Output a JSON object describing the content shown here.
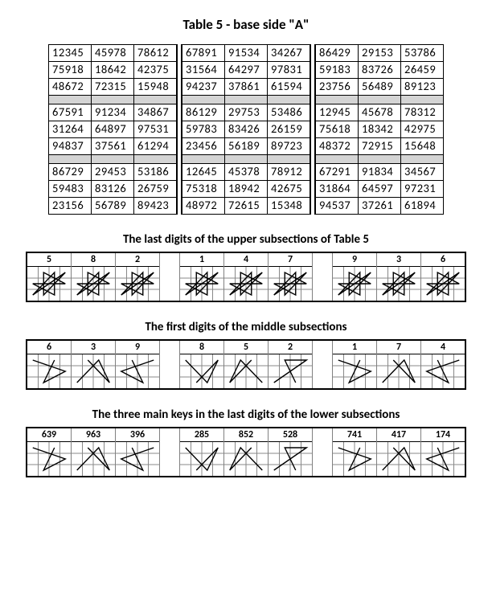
{
  "title": "Table 5 - base side \"A\"",
  "table5": {
    "blocks": [
      [
        [
          [
            "12345",
            "45978",
            "78612"
          ],
          [
            "67891",
            "91534",
            "34267"
          ],
          [
            "86429",
            "29153",
            "53786"
          ]
        ],
        [
          [
            "75918",
            "18642",
            "42375"
          ],
          [
            "31564",
            "64297",
            "97831"
          ],
          [
            "59183",
            "83726",
            "26459"
          ]
        ],
        [
          [
            "48672",
            "72315",
            "15948"
          ],
          [
            "94237",
            "37861",
            "61594"
          ],
          [
            "23756",
            "56489",
            "89123"
          ]
        ]
      ],
      [
        [
          [
            "67591",
            "91234",
            "34867"
          ],
          [
            "86129",
            "29753",
            "53486"
          ],
          [
            "12945",
            "45678",
            "78312"
          ]
        ],
        [
          [
            "31264",
            "64897",
            "97531"
          ],
          [
            "59783",
            "83426",
            "26159"
          ],
          [
            "75618",
            "18342",
            "42975"
          ]
        ],
        [
          [
            "94837",
            "37561",
            "61294"
          ],
          [
            "23456",
            "56189",
            "89723"
          ],
          [
            "48372",
            "72915",
            "15648"
          ]
        ]
      ],
      [
        [
          [
            "86729",
            "29453",
            "53186"
          ],
          [
            "12645",
            "45378",
            "78912"
          ],
          [
            "67291",
            "91834",
            "34567"
          ]
        ],
        [
          [
            "59483",
            "83126",
            "26759"
          ],
          [
            "75318",
            "18942",
            "42675"
          ],
          [
            "31864",
            "64597",
            "97231"
          ]
        ],
        [
          [
            "23156",
            "56789",
            "89423"
          ],
          [
            "48972",
            "72615",
            "15348"
          ],
          [
            "94537",
            "37261",
            "61894"
          ]
        ]
      ]
    ]
  },
  "strips": [
    {
      "heading": "The last digits of the upper subsections of Table 5",
      "groups": [
        [
          {
            "label": "5",
            "kind": "star"
          },
          {
            "label": "8",
            "kind": "star"
          },
          {
            "label": "2",
            "kind": "star"
          }
        ],
        [
          {
            "label": "1",
            "kind": "star"
          },
          {
            "label": "4",
            "kind": "star"
          },
          {
            "label": "7",
            "kind": "star"
          }
        ],
        [
          {
            "label": "9",
            "kind": "star"
          },
          {
            "label": "3",
            "kind": "star"
          },
          {
            "label": "6",
            "kind": "star"
          }
        ]
      ]
    },
    {
      "heading": "The first digits of the middle subsections",
      "groups": [
        [
          {
            "label": "6",
            "kind": "tri"
          },
          {
            "label": "3",
            "kind": "tri"
          },
          {
            "label": "9",
            "kind": "tri"
          }
        ],
        [
          {
            "label": "8",
            "kind": "tri"
          },
          {
            "label": "5",
            "kind": "tri"
          },
          {
            "label": "2",
            "kind": "tri"
          }
        ],
        [
          {
            "label": "1",
            "kind": "tri"
          },
          {
            "label": "7",
            "kind": "tri"
          },
          {
            "label": "4",
            "kind": "tri"
          }
        ]
      ]
    },
    {
      "heading": "The three main keys in the last digits of the lower subsections",
      "groups": [
        [
          {
            "label": "639",
            "kind": "tri"
          },
          {
            "label": "963",
            "kind": "tri"
          },
          {
            "label": "396",
            "kind": "tri"
          }
        ],
        [
          {
            "label": "285",
            "kind": "tri"
          },
          {
            "label": "852",
            "kind": "tri"
          },
          {
            "label": "528",
            "kind": "tri"
          }
        ],
        [
          {
            "label": "741",
            "kind": "tri"
          },
          {
            "label": "417",
            "kind": "tri"
          },
          {
            "label": "174",
            "kind": "tri"
          }
        ]
      ]
    }
  ],
  "colors": {
    "bg": "#ffffff",
    "sep": "#d4d4d4",
    "grid": "#888888",
    "border": "#000000"
  }
}
